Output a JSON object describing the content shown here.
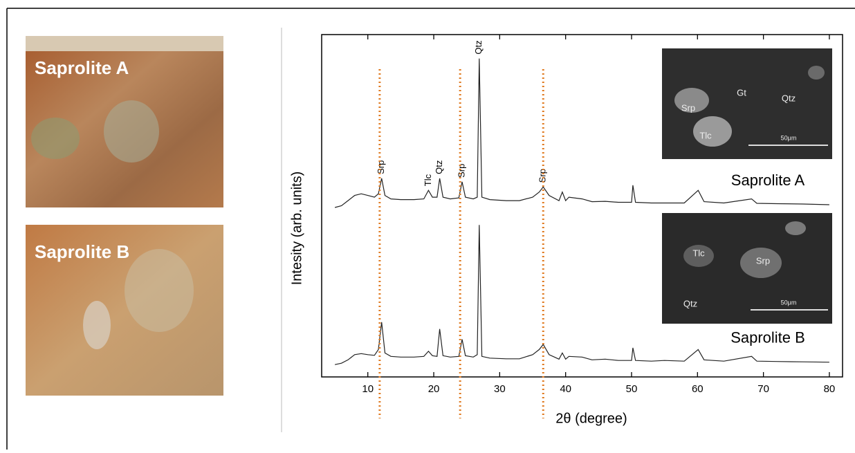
{
  "photos": [
    {
      "label": "Saprolite A"
    },
    {
      "label": "Saprolite B"
    }
  ],
  "insets": [
    {
      "labels": [
        "Srp",
        "Gt",
        "Qtz",
        "Tlc"
      ],
      "scale": "50μm"
    },
    {
      "labels": [
        "Tlc",
        "Srp",
        "Qtz"
      ],
      "scale": "50μm"
    }
  ],
  "chart_data": {
    "type": "line",
    "xlabel": "2θ (degree)",
    "ylabel": "Intesity (arb. units)",
    "x": [
      5,
      6,
      7,
      8,
      9,
      10,
      11,
      11.6,
      12.1,
      12.6,
      13.5,
      15,
      17,
      18.5,
      19.2,
      19.8,
      20.5,
      20.9,
      21.4,
      22.5,
      23.8,
      24.3,
      24.8,
      26,
      26.6,
      26.9,
      27.3,
      28.5,
      31,
      33,
      35,
      36,
      36.6,
      37.5,
      39,
      39.5,
      40,
      40.5,
      42.5,
      44,
      46,
      48,
      50,
      50.2,
      50.6,
      53,
      55,
      58,
      60.1,
      61,
      64,
      68.2,
      69,
      72,
      76,
      80
    ],
    "series": [
      {
        "name": "Saprolite A",
        "color": "#222222",
        "values": [
          49.5,
          50,
          51.5,
          53,
          53.5,
          53,
          52.5,
          53.5,
          58,
          53,
          52,
          51.8,
          51.8,
          52,
          54.5,
          52.5,
          52.5,
          58,
          52.5,
          52,
          52.3,
          57,
          52.5,
          52,
          52.5,
          93,
          52.5,
          51.8,
          51.5,
          51.5,
          52.5,
          54,
          55.5,
          53,
          51.5,
          54,
          51.5,
          52.5,
          52,
          51.2,
          51.3,
          51,
          51,
          56,
          51,
          50.8,
          50.8,
          50.8,
          54.5,
          51.2,
          50.8,
          52,
          50.7,
          50.6,
          50.5,
          50.3
        ]
      },
      {
        "name": "Saprolite B",
        "color": "#222222",
        "values": [
          3.6,
          4,
          5,
          6.5,
          6.8,
          6.5,
          6.3,
          8,
          16,
          7,
          6,
          5.8,
          5.8,
          6,
          7.5,
          6.2,
          6,
          14,
          6.2,
          5.8,
          6,
          11,
          6.2,
          5.8,
          6.5,
          44.4,
          6,
          5.5,
          5.3,
          5.3,
          6.5,
          8,
          9.5,
          6.5,
          5.2,
          7,
          5.2,
          6,
          5.8,
          5,
          5.2,
          4.8,
          4.8,
          8.5,
          4.8,
          4.6,
          4.8,
          4.6,
          8,
          5,
          4.6,
          6,
          4.6,
          4.5,
          4.4,
          4.3
        ]
      }
    ],
    "xlim": [
      3,
      82
    ],
    "ylim": [
      0,
      100
    ],
    "xticks": [
      10,
      20,
      30,
      40,
      50,
      60,
      70,
      80
    ],
    "peak_labels": [
      {
        "label": "Srp",
        "x": 12.1
      },
      {
        "label": "Tlc",
        "x": 19.2
      },
      {
        "label": "Qtz",
        "x": 20.9
      },
      {
        "label": "Srp",
        "x": 24.3
      },
      {
        "label": "Qtz",
        "x": 26.9
      },
      {
        "label": "Srp",
        "x": 36.6
      }
    ],
    "reference_lines": {
      "color": "#e07b22",
      "x": [
        11.8,
        24,
        36.6
      ]
    }
  }
}
